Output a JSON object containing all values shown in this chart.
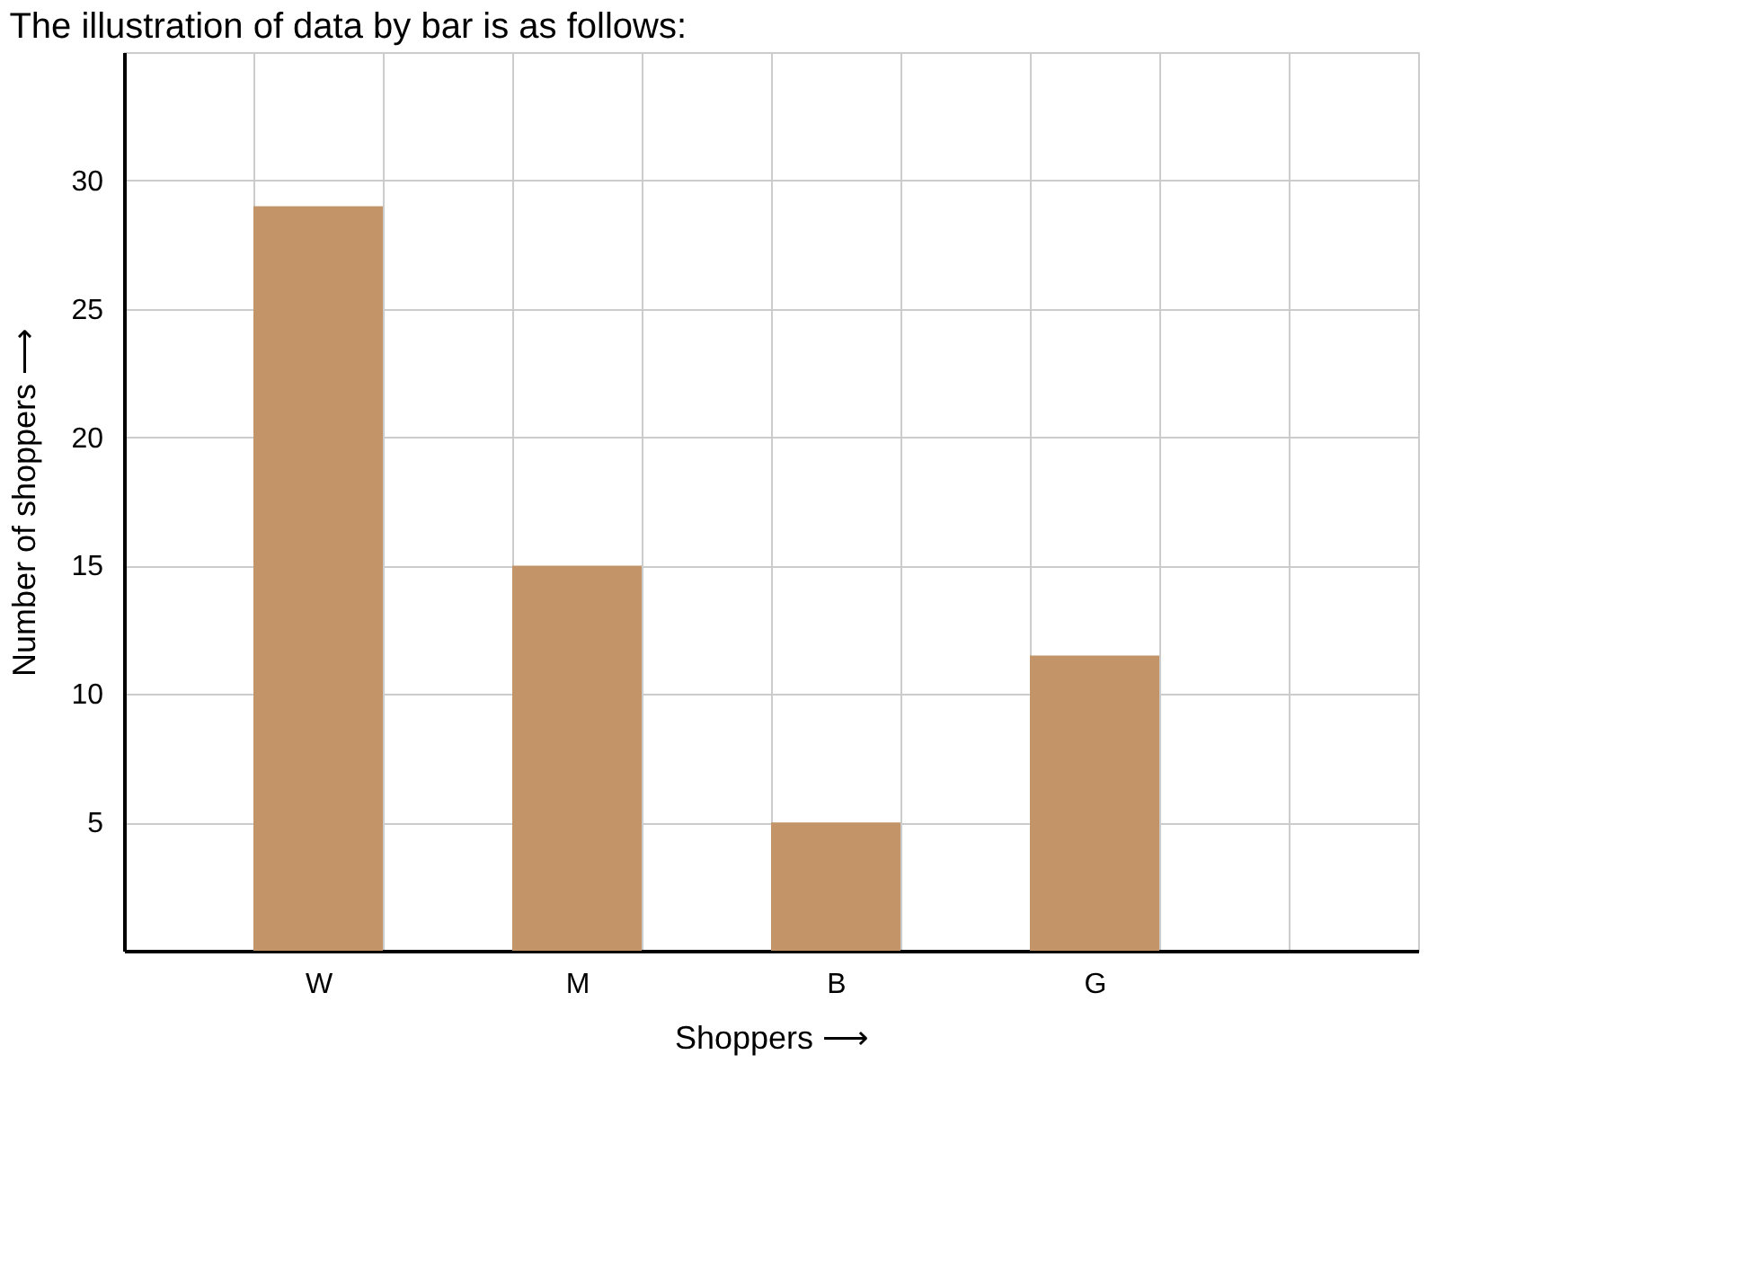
{
  "chart_data": {
    "type": "bar",
    "title": "The illustration of data by bar is as follows:",
    "xlabel": "Shoppers ⟶",
    "ylabel": "Number of shoppers ⟶",
    "categories": [
      null,
      "W",
      null,
      "M",
      null,
      "B",
      null,
      "G",
      null,
      null
    ],
    "values": [
      null,
      29,
      null,
      15,
      null,
      5,
      null,
      11.5,
      null,
      null
    ],
    "color": "#c29467",
    "ylim": [
      0,
      35
    ],
    "yticks": [
      {
        "value": 0,
        "label": null
      },
      5,
      10,
      15,
      20,
      25,
      30,
      {
        "value": 35,
        "label": null
      }
    ],
    "grid": true
  }
}
